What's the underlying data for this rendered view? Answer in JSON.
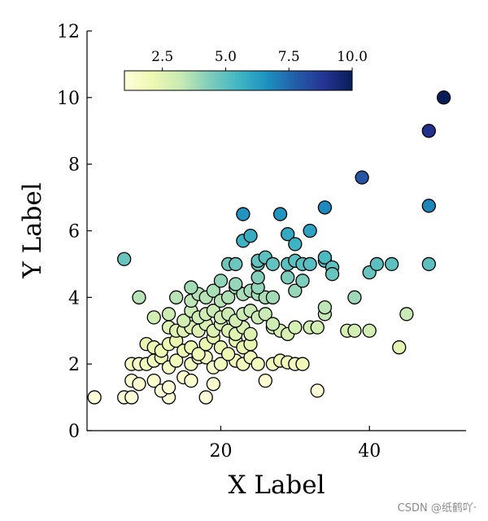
{
  "chart_data": {
    "type": "scatter",
    "title": "",
    "xlabel": "X Label",
    "ylabel": "Y Label",
    "xlim": [
      2,
      53
    ],
    "ylim": [
      0,
      12
    ],
    "xticks": [
      20,
      40
    ],
    "yticks": [
      0,
      2,
      4,
      6,
      8,
      10,
      12
    ],
    "grid": false,
    "colorbar": {
      "label": "",
      "range": [
        1,
        10
      ],
      "ticks": [
        2.5,
        5.0,
        7.5,
        10.0
      ],
      "tick_labels": [
        "2.5",
        "5.0",
        "7.5",
        "10.0"
      ],
      "colormap": "YlGnBu",
      "placement": "top-left inset"
    },
    "points": [
      [
        3,
        1,
        1
      ],
      [
        7,
        1,
        1
      ],
      [
        8,
        1,
        1
      ],
      [
        13,
        1,
        1
      ],
      [
        18,
        1,
        1
      ],
      [
        19,
        1.4,
        1.3
      ],
      [
        33,
        1.2,
        1.1
      ],
      [
        8,
        1.5,
        1.2
      ],
      [
        9,
        1.4,
        1.2
      ],
      [
        11,
        1.5,
        1.3
      ],
      [
        12,
        1.2,
        1
      ],
      [
        13,
        1.3,
        1.1
      ],
      [
        15,
        1.6,
        1.2
      ],
      [
        16,
        1.5,
        1.3
      ],
      [
        26,
        1.5,
        1.2
      ],
      [
        8,
        2,
        1.6
      ],
      [
        9,
        2,
        1.6
      ],
      [
        10,
        2,
        1.7
      ],
      [
        11,
        2.1,
        1.8
      ],
      [
        12,
        2.2,
        1.9
      ],
      [
        13,
        1.9,
        1.6
      ],
      [
        14,
        2.1,
        1.8
      ],
      [
        16,
        2,
        1.7
      ],
      [
        17,
        2.2,
        1.8
      ],
      [
        18,
        2.2,
        1.8
      ],
      [
        19,
        1.9,
        1.6
      ],
      [
        20,
        2,
        1.7
      ],
      [
        22,
        2.1,
        1.9
      ],
      [
        23,
        2,
        1.8
      ],
      [
        24,
        2.2,
        1.9
      ],
      [
        25,
        2,
        1.8
      ],
      [
        27,
        2,
        1.8
      ],
      [
        28,
        2.1,
        1.9
      ],
      [
        29,
        2.05,
        1.9
      ],
      [
        30,
        2,
        1.8
      ],
      [
        31,
        2,
        1.9
      ],
      [
        10,
        2.6,
        2.2
      ],
      [
        11,
        2.5,
        2.1
      ],
      [
        12,
        2.4,
        2
      ],
      [
        13,
        2.6,
        2.1
      ],
      [
        14,
        2.7,
        2.2
      ],
      [
        15,
        2.4,
        2
      ],
      [
        16,
        2.5,
        2.1
      ],
      [
        17,
        2.3,
        1.9
      ],
      [
        18,
        2.6,
        2.2
      ],
      [
        19,
        2.8,
        2.3
      ],
      [
        20,
        2.5,
        2.2
      ],
      [
        21,
        2.3,
        2
      ],
      [
        22,
        2.7,
        2.3
      ],
      [
        23,
        2.5,
        2.2
      ],
      [
        24,
        2.6,
        2.3
      ],
      [
        13,
        3.1,
        2.6
      ],
      [
        14,
        3,
        2.5
      ],
      [
        15,
        3,
        2.6
      ],
      [
        16,
        3.1,
        2.6
      ],
      [
        17,
        3,
        2.6
      ],
      [
        18,
        3.2,
        2.7
      ],
      [
        19,
        3,
        2.6
      ],
      [
        20,
        3.2,
        2.7
      ],
      [
        21,
        3,
        2.6
      ],
      [
        22,
        2.9,
        2.5
      ],
      [
        23,
        3.1,
        2.7
      ],
      [
        24,
        2.9,
        2.6
      ],
      [
        27,
        3.1,
        2.8
      ],
      [
        28,
        3,
        2.7
      ],
      [
        29,
        2.9,
        2.7
      ],
      [
        30,
        3.1,
        2.8
      ],
      [
        32,
        3.1,
        2.9
      ],
      [
        33,
        3.1,
        2.9
      ],
      [
        37,
        3,
        2.8
      ],
      [
        38,
        3,
        2.9
      ],
      [
        40,
        3,
        2.9
      ],
      [
        44,
        2.5,
        2.4
      ],
      [
        45,
        3.5,
        3.2
      ],
      [
        11,
        3.4,
        2.9
      ],
      [
        13,
        3.5,
        3
      ],
      [
        15,
        3.3,
        2.9
      ],
      [
        16,
        3.6,
        3.1
      ],
      [
        17,
        3.4,
        3
      ],
      [
        18,
        3.5,
        3
      ],
      [
        19,
        3.6,
        3.2
      ],
      [
        20,
        3.4,
        3
      ],
      [
        21,
        3.5,
        3.1
      ],
      [
        22,
        3.3,
        2.9
      ],
      [
        23,
        3.5,
        3.1
      ],
      [
        24,
        3.6,
        3.2
      ],
      [
        25,
        3.4,
        3.1
      ],
      [
        26,
        3.5,
        3.2
      ],
      [
        27,
        3.2,
        3
      ],
      [
        34,
        3.5,
        3.3
      ],
      [
        34,
        3.7,
        3.4
      ],
      [
        14,
        4,
        3.5
      ],
      [
        16,
        3.9,
        3.4
      ],
      [
        17,
        4.1,
        3.6
      ],
      [
        18,
        4,
        3.5
      ],
      [
        19,
        4.2,
        3.7
      ],
      [
        20,
        3.9,
        3.5
      ],
      [
        21,
        4,
        3.6
      ],
      [
        22,
        4.3,
        3.9
      ],
      [
        23,
        4.1,
        3.7
      ],
      [
        24,
        4.2,
        3.8
      ],
      [
        25,
        4.1,
        3.8
      ],
      [
        26,
        4,
        3.7
      ],
      [
        27,
        4,
        3.8
      ],
      [
        30,
        4.2,
        4
      ],
      [
        9,
        4,
        3.5
      ],
      [
        38,
        4,
        3.9
      ],
      [
        16,
        4.3,
        3.8
      ],
      [
        20,
        4.5,
        4.1
      ],
      [
        22,
        4.4,
        4
      ],
      [
        25,
        4.3,
        4.1
      ],
      [
        25,
        4.6,
        4.3
      ],
      [
        29,
        4.6,
        4.4
      ],
      [
        31,
        4.5,
        4.3
      ],
      [
        31,
        4.5,
        4.4
      ],
      [
        7,
        5.15,
        4.8
      ],
      [
        21,
        5,
        4.7
      ],
      [
        22,
        5,
        4.7
      ],
      [
        25,
        5,
        4.8
      ],
      [
        25,
        5.1,
        4.9
      ],
      [
        26,
        5.2,
        5
      ],
      [
        27,
        5,
        4.9
      ],
      [
        29,
        5,
        5
      ],
      [
        30,
        5.1,
        5
      ],
      [
        31,
        5,
        5
      ],
      [
        32,
        5,
        5.1
      ],
      [
        34,
        5.1,
        5.2
      ],
      [
        34,
        5.2,
        5.3
      ],
      [
        35,
        4.9,
        5
      ],
      [
        35,
        4.7,
        4.8
      ],
      [
        40,
        4.75,
        4.8
      ],
      [
        41,
        5,
        5
      ],
      [
        43,
        5,
        5
      ],
      [
        48,
        5,
        5
      ],
      [
        23,
        5.7,
        5.6
      ],
      [
        24,
        5.85,
        5.8
      ],
      [
        29,
        5.9,
        5.9
      ],
      [
        30,
        5.6,
        5.6
      ],
      [
        32,
        6,
        6.1
      ],
      [
        23,
        6.5,
        6.5
      ],
      [
        28,
        6.5,
        6.5
      ],
      [
        34,
        6.7,
        6.8
      ],
      [
        48,
        6.75,
        6.9
      ],
      [
        39,
        7.6,
        8
      ],
      [
        48,
        9,
        9
      ],
      [
        50,
        10,
        10
      ]
    ]
  },
  "watermark": "CSDN @纸鹤吖·"
}
